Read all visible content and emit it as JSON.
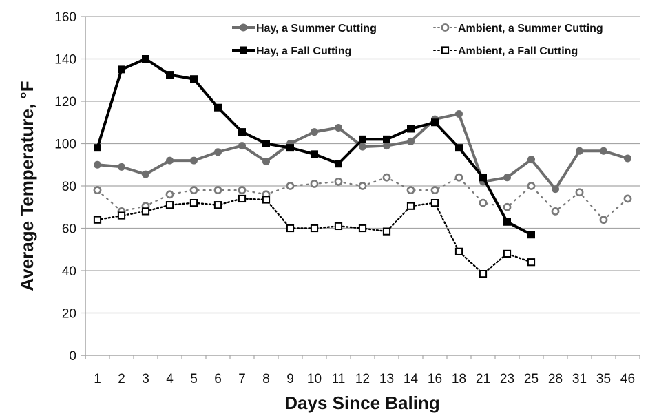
{
  "chart_data": {
    "type": "line",
    "title": "",
    "xlabel": "Days Since Baling",
    "ylabel": "Average Temperature, °F",
    "ylim": [
      0,
      160
    ],
    "yticks": [
      0,
      20,
      40,
      60,
      80,
      100,
      120,
      140,
      160
    ],
    "grid": true,
    "legend_position": "top-right",
    "categories": [
      "1",
      "2",
      "3",
      "4",
      "5",
      "6",
      "7",
      "8",
      "9",
      "10",
      "11",
      "12",
      "13",
      "14",
      "16",
      "18",
      "21",
      "23",
      "25",
      "28",
      "31",
      "35",
      "46"
    ],
    "series": [
      {
        "name": "Hay, a Summer Cutting",
        "color": "#6e6e6e",
        "line": "solid",
        "marker": "filled-circle",
        "values": [
          90,
          89,
          85.5,
          92,
          92,
          96,
          99,
          91.5,
          100,
          105.5,
          107.5,
          98.5,
          99,
          101,
          111.5,
          114,
          82,
          84,
          92.5,
          78.5,
          96.5,
          96.5,
          93
        ]
      },
      {
        "name": "Ambient, a Summer Cutting",
        "color": "#7a7a7a",
        "line": "dotted",
        "marker": "open-circle",
        "values": [
          78,
          68,
          70.5,
          76,
          78,
          78,
          78,
          76,
          80,
          81,
          82,
          80,
          84,
          78,
          78,
          84,
          72,
          70,
          80,
          68,
          77,
          64,
          74
        ]
      },
      {
        "name": "Hay, a Fall Cutting",
        "color": "#000000",
        "line": "solid",
        "marker": "filled-square",
        "values": [
          98,
          135,
          140,
          132.5,
          130.5,
          117,
          105.5,
          100,
          98,
          95,
          90.5,
          102,
          102,
          107,
          110,
          98,
          84,
          63,
          57,
          null,
          null,
          null,
          null
        ]
      },
      {
        "name": "Ambient, a Fall Cutting",
        "color": "#000000",
        "line": "dotted",
        "marker": "open-square",
        "values": [
          64,
          66,
          68,
          71,
          72,
          71,
          74,
          73.5,
          60,
          60,
          61,
          60,
          58.5,
          70.5,
          72,
          49,
          38.5,
          48,
          44,
          null,
          null,
          null,
          null
        ]
      }
    ],
    "legend_order": [
      0,
      1,
      2,
      3
    ]
  }
}
